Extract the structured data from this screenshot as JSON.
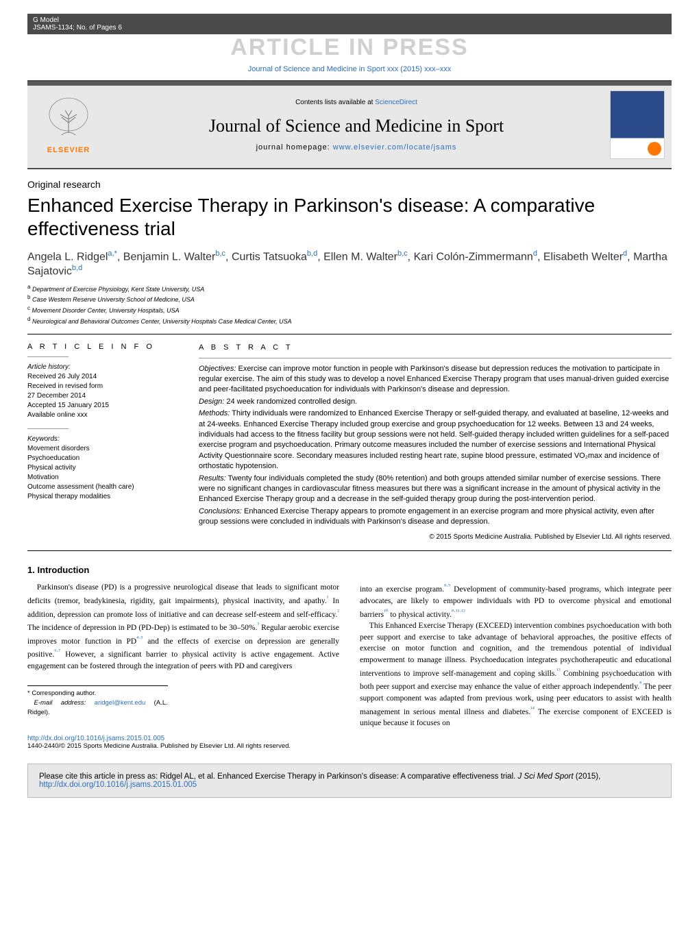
{
  "banner": {
    "g_model": "G Model",
    "model_id": "JSAMS-1134;   No. of Pages 6",
    "press_label": "ARTICLE IN PRESS",
    "journal_ref": "Journal of Science and Medicine in Sport xxx (2015) xxx–xxx"
  },
  "header": {
    "contents_text": "Contents lists available at ",
    "contents_link": "ScienceDirect",
    "journal_name": "Journal of Science and Medicine in Sport",
    "homepage_label": "journal homepage: ",
    "homepage_url": "www.elsevier.com/locate/jsams",
    "elsevier_label": "ELSEVIER"
  },
  "article": {
    "type": "Original research",
    "title": "Enhanced Exercise Therapy in Parkinson's disease: A comparative effectiveness trial",
    "authors_html": "Angela L. Ridgel<sup>a,*</sup>, Benjamin L. Walter<sup>b,c</sup>, Curtis Tatsuoka<sup>b,d</sup>, Ellen M. Walter<sup>b,c</sup>, Kari Colón-Zimmermann<sup>d</sup>, Elisabeth Welter<sup>d</sup>, Martha Sajatovic<sup>b,d</sup>",
    "affiliations": [
      {
        "sup": "a",
        "text": "Department of Exercise Physiology, Kent State University, USA"
      },
      {
        "sup": "b",
        "text": "Case Western Reserve University School of Medicine, USA"
      },
      {
        "sup": "c",
        "text": "Movement Disorder Center, University Hospitals, USA"
      },
      {
        "sup": "d",
        "text": "Neurological and Behavioral Outcomes Center, University Hospitals Case Medical Center, USA"
      }
    ]
  },
  "info": {
    "article_info_head": "A R T I C L E    I N F O",
    "abstract_head": "A B S T R A C T",
    "history_label": "Article history:",
    "history": [
      "Received 26 July 2014",
      "Received in revised form",
      "27 December 2014",
      "Accepted 15 January 2015",
      "Available online xxx"
    ],
    "keywords_label": "Keywords:",
    "keywords": [
      "Movement disorders",
      "Psychoeducation",
      "Physical activity",
      "Motivation",
      "Outcome assessment (health care)",
      "Physical therapy modalities"
    ]
  },
  "abstract": {
    "objectives_label": "Objectives:",
    "objectives": " Exercise can improve motor function in people with Parkinson's disease but depression reduces the motivation to participate in regular exercise. The aim of this study was to develop a novel Enhanced Exercise Therapy program that uses manual-driven guided exercise and peer-facilitated psychoeducation for individuals with Parkinson's disease and depression.",
    "design_label": "Design:",
    "design": " 24 week randomized controlled design.",
    "methods_label": "Methods:",
    "methods": " Thirty individuals were randomized to Enhanced Exercise Therapy or self-guided therapy, and evaluated at baseline, 12-weeks and at 24-weeks. Enhanced Exercise Therapy included group exercise and group psychoeducation for 12 weeks. Between 13 and 24 weeks, individuals had access to the fitness facility but group sessions were not held. Self-guided therapy included written guidelines for a self-paced exercise program and psychoeducation. Primary outcome measures included the number of exercise sessions and International Physical Activity Questionnaire score. Secondary measures included resting heart rate, supine blood pressure, estimated VO₂max and incidence of orthostatic hypotension.",
    "results_label": "Results:",
    "results": " Twenty four individuals completed the study (80% retention) and both groups attended similar number of exercise sessions. There were no significant changes in cardiovascular fitness measures but there was a significant increase in the amount of physical activity in the Enhanced Exercise Therapy group and a decrease in the self-guided therapy group during the post-intervention period.",
    "conclusions_label": "Conclusions:",
    "conclusions": " Enhanced Exercise Therapy appears to promote engagement in an exercise program and more physical activity, even after group sessions were concluded in individuals with Parkinson's disease and depression.",
    "copyright": "© 2015 Sports Medicine Australia. Published by Elsevier Ltd. All rights reserved."
  },
  "intro": {
    "heading": "1.  Introduction",
    "para1": "Parkinson's disease (PD) is a progressive neurological disease that leads to significant motor deficits (tremor, bradykinesia, rigidity, gait impairments), physical inactivity, and apathy.¹ In addition, depression can promote loss of initiative and can decrease self-esteem and self-efficacy.² The incidence of depression in PD (PD-Dep) is estimated to be 30–50%.³ Regular aerobic exercise improves motor function in PD⁴·⁵ and the effects of exercise on depression are generally positive.⁶·⁷ However, a significant barrier to physical activity is active engagement. Active engagement can be fostered through the integration of peers with PD and caregivers",
    "para2": "into an exercise program.⁸·⁹ Development of community-based programs, which integrate peer advocates, are likely to empower individuals with PD to overcome physical and emotional barriers¹⁰ to physical activity.⁸·¹¹·¹²",
    "para3": "This Enhanced Exercise Therapy (EXCEED) intervention combines psychoeducation with both peer support and exercise to take advantage of behavioral approaches, the positive effects of exercise on motor function and cognition, and the tremendous potential of individual empowerment to manage illness. Psychoeducation integrates psychotherapeutic and educational interventions to improve self-management and coping skills.¹³ Combining psychoeducation with both peer support and exercise may enhance the value of either approach independently.⁸ The peer support component was adapted from previous work, using peer educators to assist with health management in serious mental illness and diabetes.¹⁴ The exercise component of EXCEED is unique because it focuses on"
  },
  "footer": {
    "corresponding": "* Corresponding author.",
    "email_label": "E-mail address: ",
    "email": "aridgel@kent.edu",
    "email_suffix": " (A.L. Ridgel).",
    "doi": "http://dx.doi.org/10.1016/j.jsams.2015.01.005",
    "copyright_bottom": "1440-2440/© 2015 Sports Medicine Australia. Published by Elsevier Ltd. All rights reserved.",
    "citation_text": "Please cite this article in press as: Ridgel AL, et al. Enhanced Exercise Therapy in Parkinson's disease: A comparative effectiveness trial. ",
    "citation_journal": "J Sci Med Sport",
    "citation_year": " (2015), ",
    "citation_doi": "http://dx.doi.org/10.1016/j.jsams.2015.01.005"
  },
  "colors": {
    "link": "#2a6ebb",
    "banner_bg": "#4a4a4a",
    "elsevier_orange": "#ff7700",
    "header_grad_dark": "#5a5a5a",
    "header_grad_light": "#e8e8e8",
    "citation_bg": "#e8e8e8"
  }
}
